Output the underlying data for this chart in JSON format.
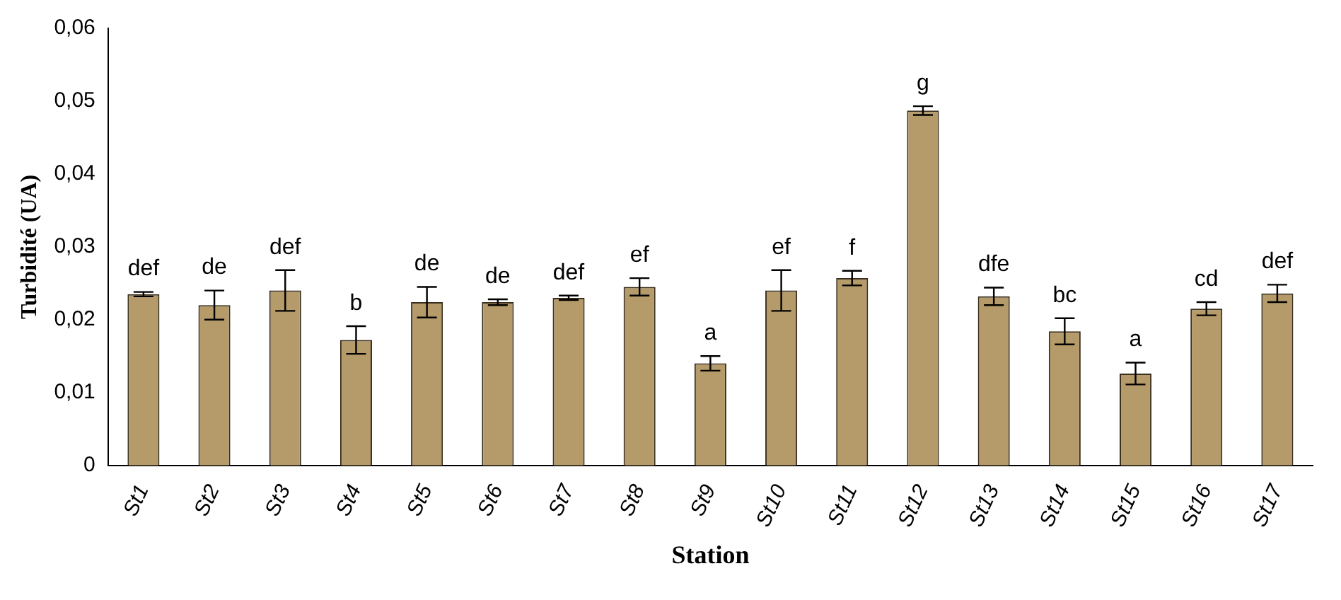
{
  "chart_data": {
    "type": "bar",
    "xlabel": "Station",
    "ylabel": "Turbidité (UA)",
    "categories": [
      "St1",
      "St2",
      "St3",
      "St4",
      "St5",
      "St6",
      "St7",
      "St8",
      "St9",
      "St10",
      "St11",
      "St12",
      "St13",
      "St14",
      "St15",
      "St16",
      "St17"
    ],
    "values": [
      0.0235,
      0.022,
      0.024,
      0.0172,
      0.0224,
      0.0224,
      0.023,
      0.0245,
      0.014,
      0.024,
      0.0257,
      0.0487,
      0.0232,
      0.0184,
      0.0126,
      0.0215,
      0.0236
    ],
    "errors": [
      0.0003,
      0.002,
      0.0028,
      0.0019,
      0.0021,
      0.0004,
      0.0003,
      0.0012,
      0.001,
      0.0028,
      0.001,
      0.0006,
      0.0012,
      0.0018,
      0.0015,
      0.0009,
      0.0012
    ],
    "color": "#b59a6a",
    "ylim": [
      0,
      0.06
    ],
    "yticks": [
      {
        "value": 0,
        "label": "0"
      },
      {
        "value": 0.01,
        "label": "0,01"
      },
      {
        "value": 0.02,
        "label": "0,02"
      },
      {
        "value": 0.03,
        "label": "0,03"
      },
      {
        "value": 0.04,
        "label": "0,04"
      },
      {
        "value": 0.05,
        "label": "0,05"
      },
      {
        "value": 0.06,
        "label": "0,06"
      }
    ],
    "grid": false,
    "legend": false,
    "annotations": [
      "def",
      "de",
      "def",
      "b",
      "de",
      "de",
      "def",
      "ef",
      "a",
      "ef",
      "f",
      "g",
      "dfe",
      "bc",
      "a",
      "cd",
      "def"
    ]
  }
}
